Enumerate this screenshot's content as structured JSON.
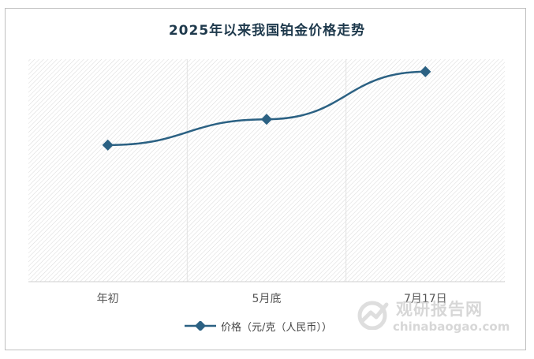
{
  "chart_data": {
    "type": "line",
    "title": "2025年以来我国铂金价格走势",
    "categories": [
      "年初",
      "5月底",
      "7月17日"
    ],
    "series": [
      {
        "name": "价格（元/克（人民币））",
        "values": [
          235,
          268,
          329
        ],
        "color": "#2b6183"
      }
    ],
    "ylim": [
      60,
      345
    ],
    "grid": true,
    "legend": "bottom-center"
  },
  "watermark": {
    "name_cn": "观研报告网",
    "url": "chinabaogao.com"
  },
  "colors": {
    "line": "#2b6183",
    "title": "#1f3a4d",
    "hatch": "#d9d9d9"
  }
}
